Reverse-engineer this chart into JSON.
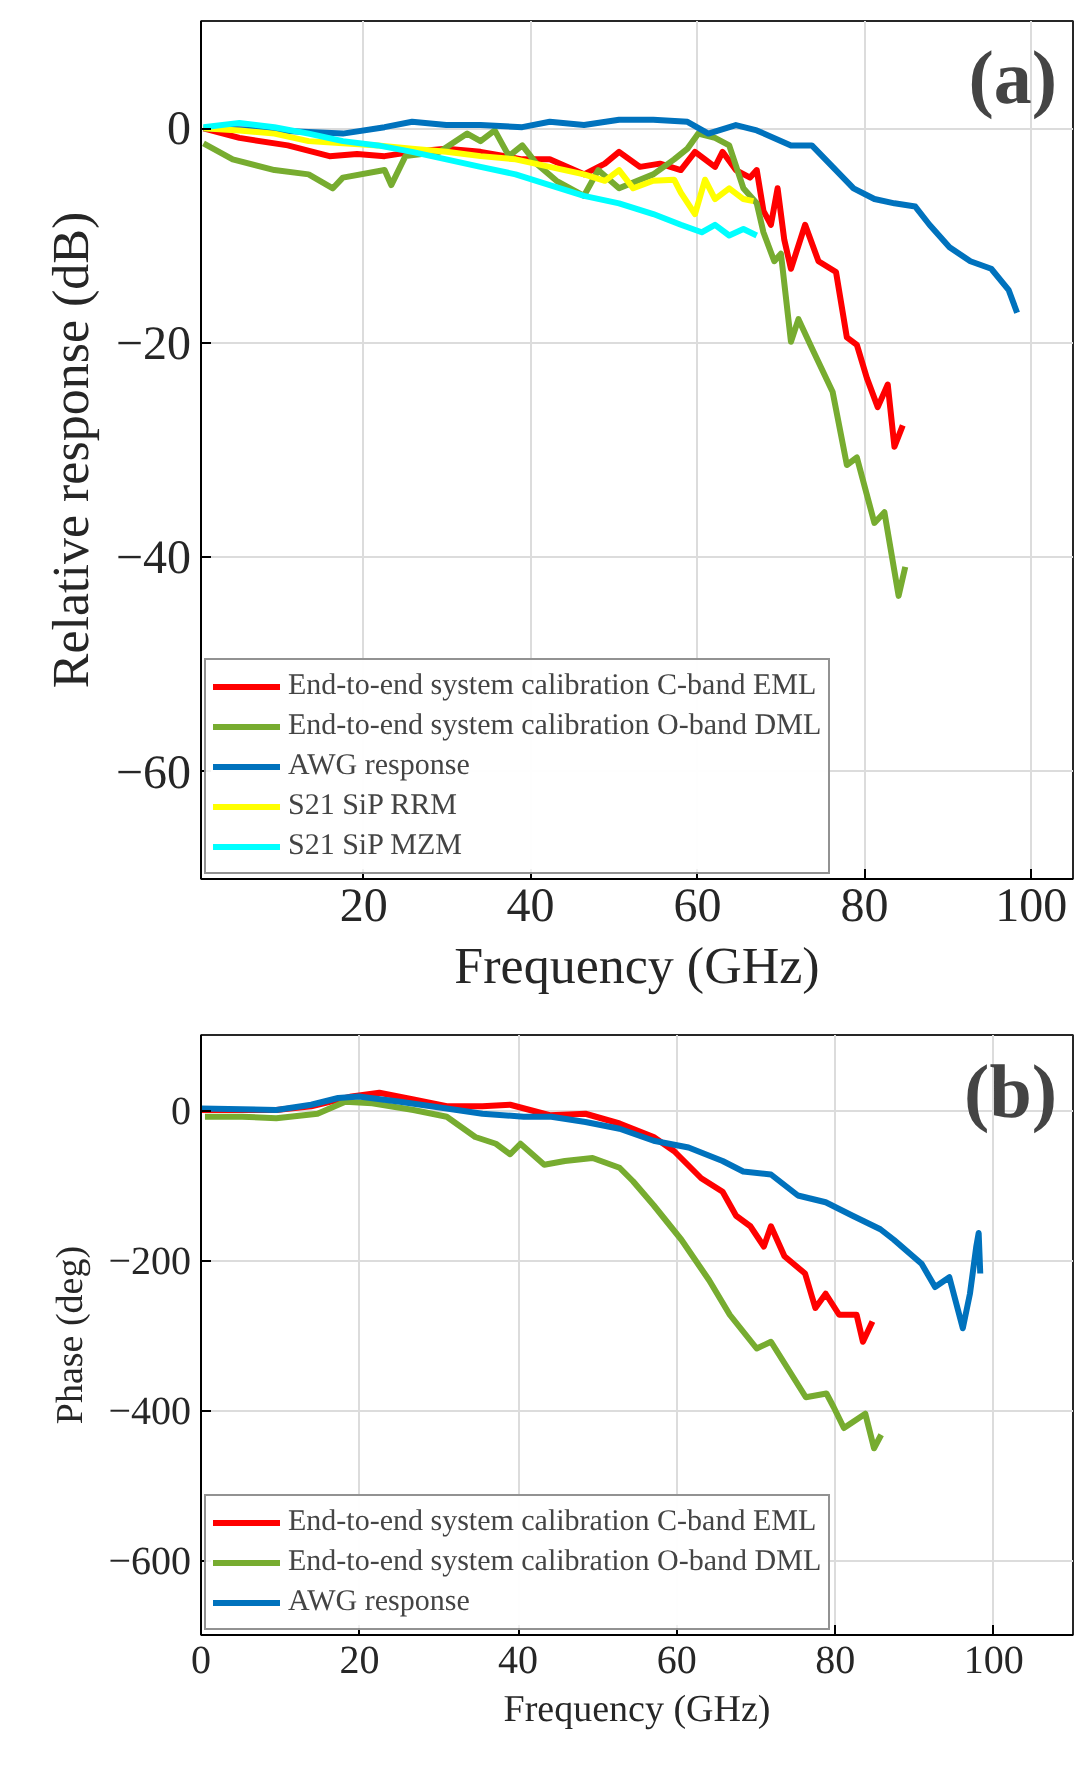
{
  "chart_data": [
    {
      "type": "line",
      "annotations": [
        "(a)"
      ],
      "xlabel": "Frequency (GHz)",
      "ylabel": "Relative response (dB)",
      "xlim": [
        0.5,
        105
      ],
      "ylim": [
        -70,
        10
      ],
      "xticks": [
        20,
        40,
        60,
        80,
        100
      ],
      "yticks": [
        -60,
        -40,
        -20,
        0
      ],
      "grid": true,
      "legend": "bottom left",
      "line_style": "solid",
      "marker": "none",
      "series": [
        {
          "name": "End-to-end system calibration C-band EML",
          "color": "#ff0000",
          "x": [
            0.8,
            5.1,
            10.9,
            15.9,
            19.2,
            22.5,
            25.8,
            29.9,
            34,
            39,
            42.3,
            46.4,
            48.9,
            50.6,
            53.1,
            55.5,
            58,
            59.7,
            62.1,
            63,
            64.6,
            66.3,
            67.1,
            67.9,
            68.8,
            69.6,
            70.4,
            71.2,
            72.9,
            74.5,
            76.6,
            77.9,
            79.1,
            80.3,
            81.6,
            82.8,
            83.6,
            84.6
          ],
          "values": [
            0,
            -0.9,
            -1.6,
            -2.6,
            -2.4,
            -2.6,
            -2.2,
            -1.9,
            -2.2,
            -2.9,
            -2.9,
            -4.3,
            -3.3,
            -2.2,
            -3.6,
            -3.3,
            -3.9,
            -2.2,
            -3.6,
            -2.2,
            -3.9,
            -4.6,
            -3.9,
            -7.7,
            -9,
            -5.6,
            -10.4,
            -13.1,
            -9,
            -12.4,
            -13.4,
            -19.5,
            -20.2,
            -23.3,
            -26,
            -23.9,
            -29.7,
            -27.7
          ]
        },
        {
          "name": "End-to-end system calibration O-band DML",
          "color": "#77ac30",
          "x": [
            0.8,
            4.3,
            9.3,
            13.4,
            16.3,
            17.5,
            22.5,
            23.3,
            25,
            29.1,
            32.4,
            34,
            35.7,
            37.4,
            39,
            40.7,
            43.1,
            46.4,
            48.1,
            50.6,
            54.7,
            57.2,
            58.8,
            60.1,
            62.1,
            63.8,
            65.5,
            67.1,
            67.9,
            69.2,
            70,
            71.2,
            72.1,
            73.7,
            76.2,
            77.9,
            79.1,
            81.2,
            82.4,
            84.1,
            84.9
          ],
          "values": [
            -1.4,
            -2.9,
            -3.9,
            -4.3,
            -5.6,
            -4.6,
            -3.9,
            -5.3,
            -2.6,
            -2.2,
            -0.5,
            -1.2,
            -0.2,
            -2.6,
            -1.6,
            -3.3,
            -4.9,
            -6.3,
            -3.9,
            -5.6,
            -4.3,
            -2.9,
            -1.9,
            -0.5,
            -0.9,
            -1.6,
            -5.6,
            -7,
            -9.7,
            -12.4,
            -11.7,
            -19.9,
            -17.8,
            -20.5,
            -24.6,
            -31.4,
            -30.7,
            -36.8,
            -35.8,
            -43.6,
            -40.9
          ]
        },
        {
          "name": "AWG response",
          "color": "#0072bd",
          "x": [
            0.8,
            9.3,
            17.5,
            22.5,
            25.8,
            29.9,
            34,
            39,
            42.3,
            46.4,
            50.6,
            54.7,
            58.8,
            61.3,
            64.6,
            67.1,
            71.2,
            73.7,
            76.2,
            78.7,
            81.2,
            83.6,
            86.1,
            87.8,
            90.2,
            92.7,
            95.2,
            97.3,
            98.3
          ],
          "values": [
            0,
            -0.2,
            -0.5,
            0.1,
            0.6,
            0.3,
            0.3,
            0.1,
            0.6,
            0.3,
            0.8,
            0.8,
            0.6,
            -0.5,
            0.3,
            -0.2,
            -1.6,
            -1.6,
            -3.6,
            -5.6,
            -6.6,
            -7,
            -7.3,
            -9,
            -11.1,
            -12.4,
            -13.1,
            -15.1,
            -17.2
          ]
        },
        {
          "name": "S21 SiP RRM",
          "color": "#ffff00",
          "x": [
            0.8,
            5.1,
            9.3,
            13.4,
            17.5,
            21.7,
            25.8,
            29.9,
            34,
            38.2,
            42.3,
            46.4,
            48.9,
            50.6,
            52.3,
            54.7,
            57.2,
            58,
            59.7,
            60.9,
            62.1,
            63.8,
            65.5,
            66.7
          ],
          "values": [
            0,
            -0.2,
            -0.5,
            -1.2,
            -1.4,
            -1.6,
            -1.9,
            -2.2,
            -2.6,
            -2.9,
            -3.6,
            -4.3,
            -4.9,
            -3.9,
            -5.6,
            -4.9,
            -4.8,
            -6,
            -8,
            -4.8,
            -6.6,
            -5.6,
            -6.6,
            -6.8
          ]
        },
        {
          "name": "S21 SiP MZM",
          "color": "#00ffff",
          "x": [
            0.8,
            5.1,
            9.3,
            13.4,
            17.5,
            21.7,
            25.8,
            29.9,
            34,
            38.2,
            42.3,
            46.4,
            50.6,
            54.7,
            58,
            60.5,
            62.1,
            63.8,
            65.5,
            67.1
          ],
          "values": [
            0.1,
            0.5,
            0.1,
            -0.5,
            -1.2,
            -1.6,
            -2.2,
            -2.9,
            -3.6,
            -4.3,
            -5.3,
            -6.3,
            -7,
            -8,
            -9,
            -9.7,
            -9,
            -10,
            -9.4,
            -10
          ]
        }
      ]
    },
    {
      "type": "line",
      "annotations": [
        "(b)"
      ],
      "xlabel": "Frequency (GHz)",
      "ylabel": "Phase (deg)",
      "xlim": [
        0,
        110
      ],
      "ylim": [
        -700,
        100
      ],
      "xticks": [
        0,
        20,
        40,
        60,
        80,
        100
      ],
      "yticks": [
        -600,
        -400,
        -200,
        0
      ],
      "grid": true,
      "legend": "bottom left",
      "line_style": "solid",
      "marker": "none",
      "series": [
        {
          "name": "End-to-end system calibration C-band EML",
          "color": "#ff0000",
          "x": [
            0,
            9.5,
            13.9,
            19,
            22.5,
            26.8,
            31,
            35.5,
            39,
            44,
            48.5,
            52.8,
            57.1,
            59.7,
            63.1,
            65.8,
            67.5,
            69.3,
            71,
            71.9,
            73.6,
            76.2,
            77.5,
            78.8,
            80.5,
            82.7,
            83.5,
            84.7
          ],
          "values": [
            0,
            0,
            5,
            18,
            23,
            14,
            5,
            5,
            7,
            -7,
            -5,
            -18,
            -36,
            -55,
            -91,
            -109,
            -141,
            -155,
            -182,
            -155,
            -195,
            -218,
            -264,
            -245,
            -273,
            -273,
            -309,
            -282
          ]
        },
        {
          "name": "End-to-end system calibration O-band DML",
          "color": "#77ac30",
          "x": [
            0.5,
            5.2,
            9.5,
            14.7,
            18.2,
            21.6,
            26.8,
            31,
            34.6,
            37.2,
            39,
            40.3,
            43.3,
            45.9,
            49.4,
            52.8,
            54.5,
            57.1,
            60.6,
            64.1,
            66.7,
            70.1,
            71.9,
            76.3,
            78.9,
            79.8,
            81.1,
            83.8,
            84.9,
            85.8
          ],
          "values": [
            -9,
            -9,
            -11,
            -5,
            11,
            9,
            0,
            -9,
            -36,
            -45,
            -59,
            -45,
            -73,
            -68,
            -64,
            -77,
            -95,
            -127,
            -173,
            -227,
            -273,
            -318,
            -309,
            -383,
            -378,
            -396,
            -424,
            -405,
            -451,
            -433
          ]
        },
        {
          "name": "AWG response",
          "color": "#0072bd",
          "x": [
            0,
            9.5,
            13.9,
            17.3,
            19.9,
            25.1,
            31,
            35.5,
            40.7,
            44.2,
            48.5,
            52.8,
            57.1,
            61.5,
            65.8,
            68.4,
            71.9,
            75.3,
            78.8,
            82.2,
            85.7,
            87.4,
            90.9,
            92.6,
            94.4,
            96.1,
            97,
            97.8,
            98.1,
            98.3
          ],
          "values": [
            2,
            0,
            7,
            16,
            18,
            11,
            2,
            -5,
            -9,
            -9,
            -16,
            -25,
            -41,
            -50,
            -68,
            -82,
            -86,
            -114,
            -123,
            -141,
            -159,
            -173,
            -205,
            -236,
            -223,
            -291,
            -245,
            -182,
            -164,
            -218
          ]
        }
      ]
    }
  ]
}
